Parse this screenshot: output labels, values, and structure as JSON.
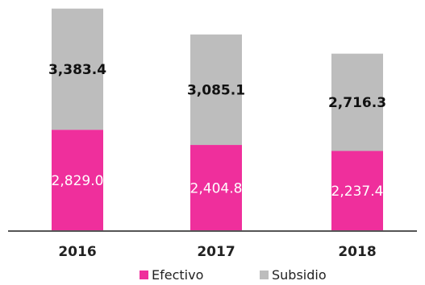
{
  "chart_data": {
    "type": "bar",
    "stacked": true,
    "categories": [
      "2016",
      "2017",
      "2018"
    ],
    "series": [
      {
        "name": "Efectivo",
        "values": [
          2829.0,
          2404.8,
          2237.4
        ],
        "labels": [
          "2,829.0",
          "2,404.8",
          "2,237.4"
        ],
        "color": "#ef2f9c",
        "label_color": "#ffffff"
      },
      {
        "name": "Subsidio",
        "values": [
          3383.4,
          3085.1,
          2716.3
        ],
        "labels": [
          "3,383.4",
          "3,085.1",
          "2,716.3"
        ],
        "color": "#bdbdbd",
        "label_color": "#111111"
      }
    ],
    "ylim": [
      0,
      6250
    ],
    "grid": false,
    "legend_position": "bottom",
    "axis_line_color": "#555555"
  }
}
